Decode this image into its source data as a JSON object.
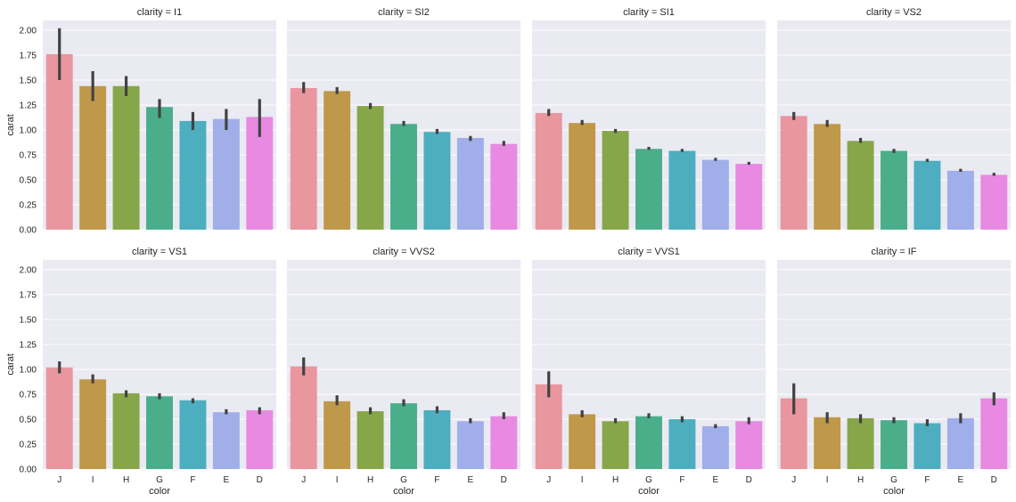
{
  "chart_data": {
    "type": "bar",
    "layout": "facet-grid",
    "facet_variable": "clarity",
    "xlabel": "color",
    "ylabel": "carat",
    "ylim": [
      0,
      2.1
    ],
    "yticks": [
      "0.00",
      "0.25",
      "0.50",
      "0.75",
      "1.00",
      "1.25",
      "1.50",
      "1.75",
      "2.00"
    ],
    "grid": true,
    "categories": [
      "J",
      "I",
      "H",
      "G",
      "F",
      "E",
      "D"
    ],
    "colors": [
      "#e9969f",
      "#c0984a",
      "#87a649",
      "#4aae8b",
      "#4caebf",
      "#a0aeea",
      "#e88ae1"
    ],
    "error_bar_color": "#424242",
    "panels": [
      {
        "title": "clarity = I1",
        "values": [
          1.76,
          1.44,
          1.44,
          1.23,
          1.09,
          1.11,
          1.13
        ],
        "ci_low": [
          1.5,
          1.29,
          1.34,
          1.12,
          1.0,
          1.0,
          0.93
        ],
        "ci_high": [
          2.02,
          1.59,
          1.54,
          1.31,
          1.18,
          1.21,
          1.31
        ]
      },
      {
        "title": "clarity = SI2",
        "values": [
          1.42,
          1.39,
          1.24,
          1.06,
          0.98,
          0.92,
          0.86
        ],
        "ci_low": [
          1.37,
          1.36,
          1.21,
          1.04,
          0.96,
          0.89,
          0.84
        ],
        "ci_high": [
          1.48,
          1.43,
          1.27,
          1.09,
          1.01,
          0.94,
          0.89
        ]
      },
      {
        "title": "clarity = SI1",
        "values": [
          1.17,
          1.07,
          0.99,
          0.81,
          0.79,
          0.7,
          0.66
        ],
        "ci_low": [
          1.14,
          1.05,
          0.97,
          0.8,
          0.78,
          0.69,
          0.65
        ],
        "ci_high": [
          1.21,
          1.1,
          1.01,
          0.83,
          0.81,
          0.72,
          0.68
        ]
      },
      {
        "title": "clarity = VS2",
        "values": [
          1.14,
          1.06,
          0.89,
          0.79,
          0.69,
          0.59,
          0.55
        ],
        "ci_low": [
          1.1,
          1.03,
          0.87,
          0.77,
          0.68,
          0.58,
          0.54
        ],
        "ci_high": [
          1.18,
          1.1,
          0.92,
          0.81,
          0.71,
          0.61,
          0.57
        ]
      },
      {
        "title": "clarity = VS1",
        "values": [
          1.02,
          0.9,
          0.76,
          0.73,
          0.69,
          0.57,
          0.59
        ],
        "ci_low": [
          0.96,
          0.86,
          0.72,
          0.7,
          0.66,
          0.55,
          0.55
        ],
        "ci_high": [
          1.08,
          0.95,
          0.79,
          0.76,
          0.71,
          0.6,
          0.62
        ]
      },
      {
        "title": "clarity = VVS2",
        "values": [
          1.03,
          0.68,
          0.58,
          0.66,
          0.59,
          0.48,
          0.53
        ],
        "ci_low": [
          0.94,
          0.64,
          0.55,
          0.63,
          0.56,
          0.46,
          0.5
        ],
        "ci_high": [
          1.12,
          0.74,
          0.62,
          0.7,
          0.63,
          0.51,
          0.57
        ]
      },
      {
        "title": "clarity = VVS1",
        "values": [
          0.85,
          0.55,
          0.48,
          0.53,
          0.5,
          0.43,
          0.48
        ],
        "ci_low": [
          0.72,
          0.52,
          0.46,
          0.51,
          0.47,
          0.41,
          0.45
        ],
        "ci_high": [
          0.98,
          0.59,
          0.51,
          0.56,
          0.53,
          0.45,
          0.52
        ]
      },
      {
        "title": "clarity = IF",
        "values": [
          0.71,
          0.52,
          0.51,
          0.49,
          0.46,
          0.51,
          0.71
        ],
        "ci_low": [
          0.55,
          0.46,
          0.46,
          0.46,
          0.43,
          0.46,
          0.64
        ],
        "ci_high": [
          0.86,
          0.57,
          0.55,
          0.52,
          0.5,
          0.56,
          0.77
        ]
      }
    ]
  }
}
